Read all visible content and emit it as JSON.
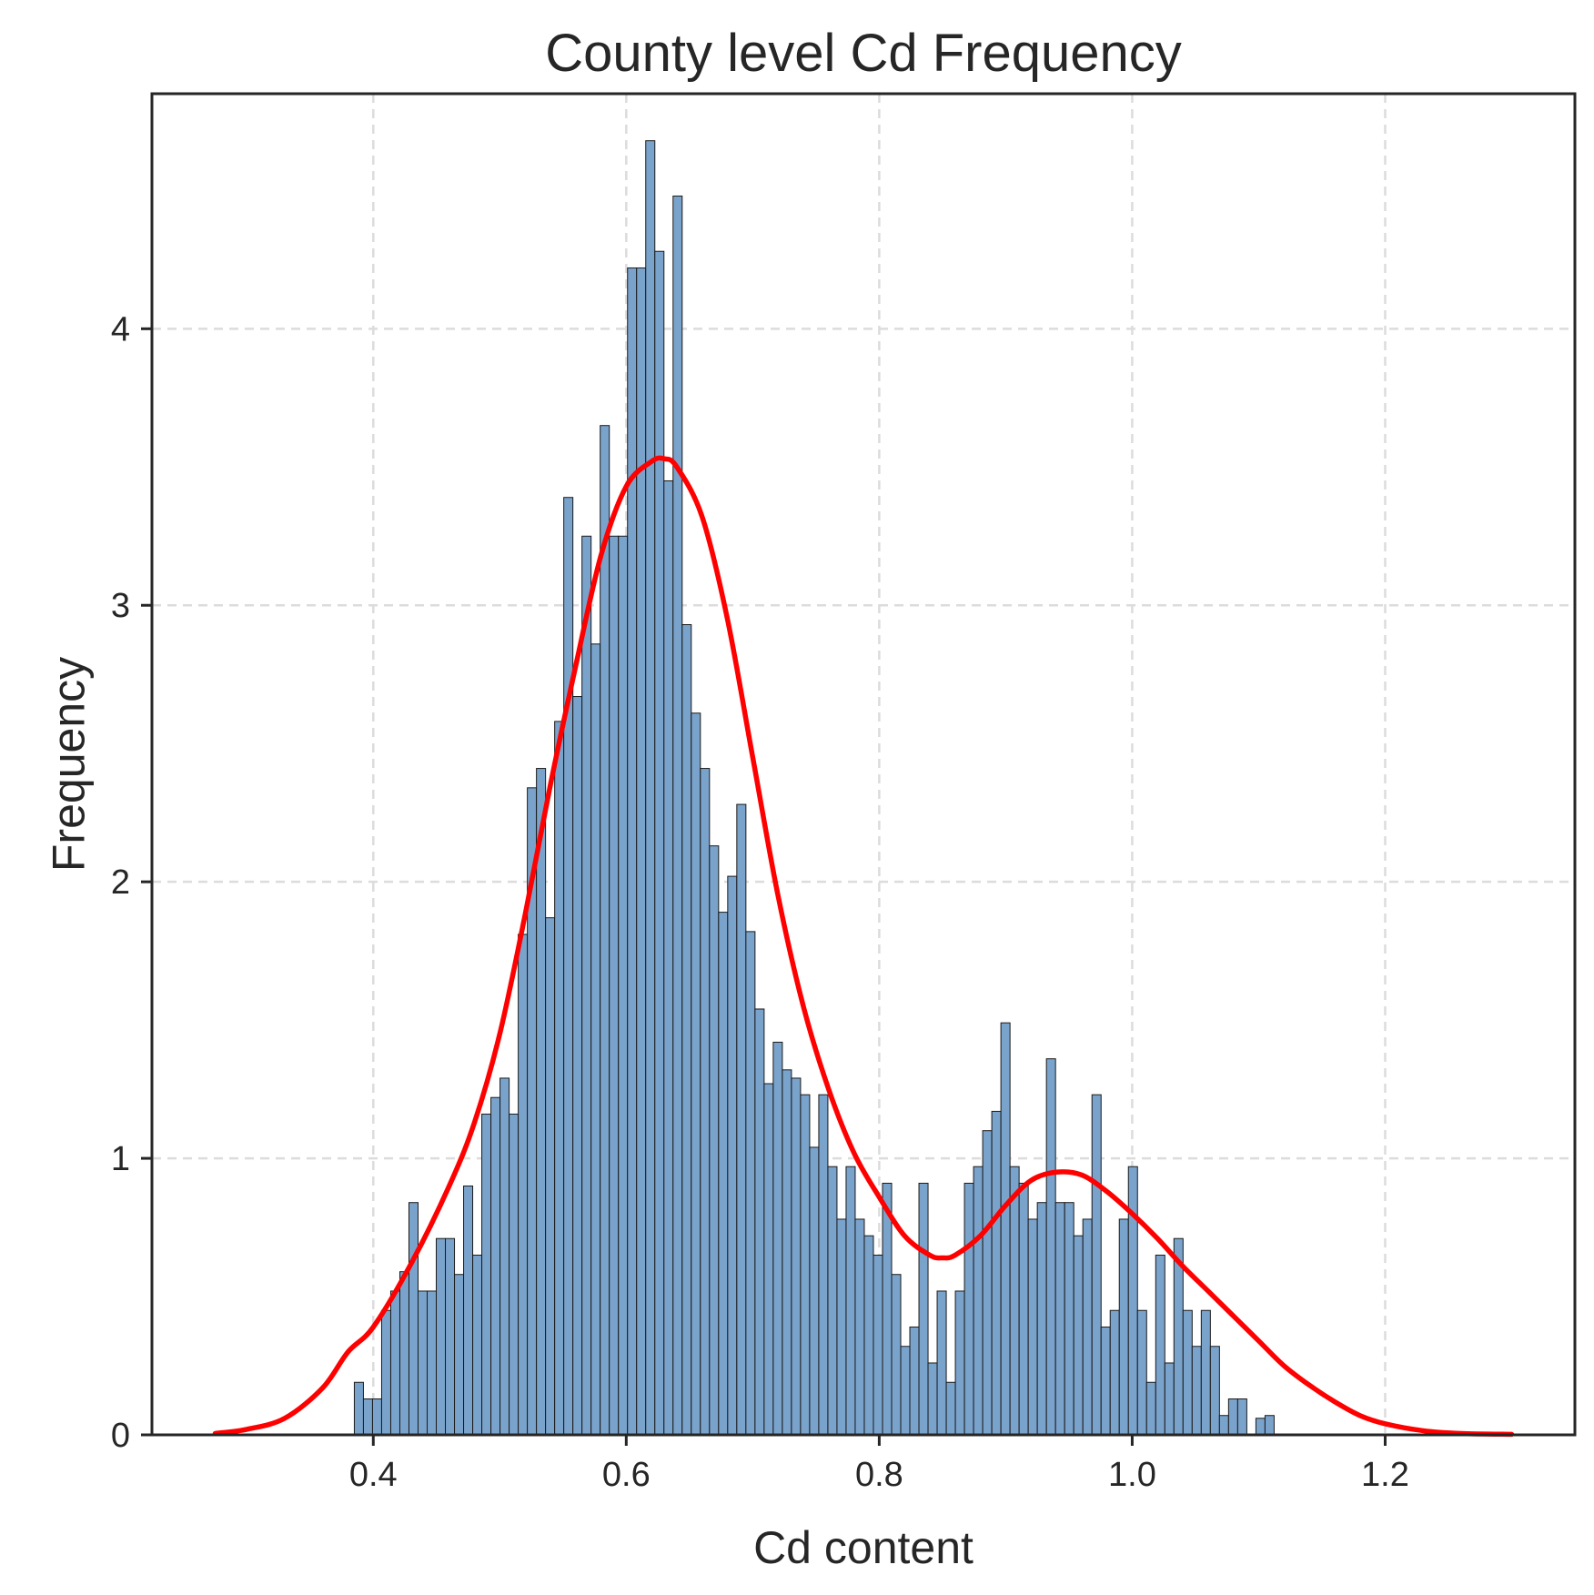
{
  "chart_data": {
    "type": "bar",
    "title": "County level Cd Frequency",
    "xlabel": "Cd content",
    "ylabel": "Frequency",
    "xlim": [
      0.225,
      1.35
    ],
    "ylim": [
      0,
      4.85
    ],
    "grid": true,
    "x_ticks": [
      {
        "value": 0.4,
        "label": "0.4"
      },
      {
        "value": 0.6,
        "label": "0.6"
      },
      {
        "value": 0.8,
        "label": "0.8"
      },
      {
        "value": 1.0,
        "label": "1.0"
      },
      {
        "value": 1.2,
        "label": "1.2"
      }
    ],
    "y_ticks": [
      {
        "value": 0,
        "label": "0"
      },
      {
        "value": 1,
        "label": "1"
      },
      {
        "value": 2,
        "label": "2"
      },
      {
        "value": 3,
        "label": "3"
      },
      {
        "value": 4,
        "label": "4"
      }
    ],
    "histogram": {
      "start": 0.385,
      "bin_width": 0.0072,
      "values": [
        0.19,
        0.13,
        0.13,
        0.45,
        0.52,
        0.59,
        0.84,
        0.52,
        0.52,
        0.71,
        0.71,
        0.58,
        0.9,
        0.65,
        1.16,
        1.22,
        1.29,
        1.16,
        1.81,
        2.34,
        2.41,
        1.87,
        2.58,
        3.39,
        2.67,
        3.25,
        2.86,
        3.65,
        3.25,
        3.25,
        4.22,
        4.22,
        4.68,
        4.28,
        3.45,
        4.48,
        2.93,
        2.61,
        2.41,
        2.13,
        1.89,
        2.02,
        2.28,
        1.82,
        1.54,
        1.27,
        1.42,
        1.32,
        1.29,
        1.23,
        1.04,
        1.23,
        0.97,
        0.78,
        0.97,
        0.78,
        0.72,
        0.65,
        0.91,
        0.58,
        0.32,
        0.39,
        0.91,
        0.26,
        0.52,
        0.19,
        0.52,
        0.91,
        0.97,
        1.1,
        1.17,
        1.49,
        0.97,
        0.91,
        0.78,
        0.84,
        1.36,
        0.84,
        0.84,
        0.72,
        0.78,
        1.23,
        0.39,
        0.45,
        0.78,
        0.97,
        0.45,
        0.19,
        0.65,
        0.26,
        0.71,
        0.45,
        0.32,
        0.45,
        0.32,
        0.07,
        0.13,
        0.13,
        0.0,
        0.06,
        0.07
      ],
      "fill": "#7aa3cc",
      "edge": "#1a1a1a"
    },
    "series": [
      {
        "type": "line",
        "color": "#ff0000",
        "x": [
          0.275,
          0.3,
          0.33,
          0.36,
          0.38,
          0.4,
          0.43,
          0.46,
          0.48,
          0.5,
          0.52,
          0.54,
          0.56,
          0.58,
          0.6,
          0.62,
          0.63,
          0.64,
          0.66,
          0.68,
          0.7,
          0.72,
          0.74,
          0.76,
          0.78,
          0.8,
          0.82,
          0.84,
          0.85,
          0.86,
          0.88,
          0.9,
          0.92,
          0.94,
          0.96,
          0.98,
          1.0,
          1.02,
          1.04,
          1.06,
          1.08,
          1.1,
          1.12,
          1.14,
          1.16,
          1.18,
          1.2,
          1.23,
          1.26,
          1.3
        ],
        "y": [
          0.005,
          0.02,
          0.06,
          0.17,
          0.3,
          0.39,
          0.62,
          0.9,
          1.13,
          1.45,
          1.88,
          2.35,
          2.78,
          3.18,
          3.43,
          3.52,
          3.53,
          3.5,
          3.32,
          2.95,
          2.45,
          1.95,
          1.55,
          1.25,
          1.02,
          0.86,
          0.72,
          0.65,
          0.64,
          0.65,
          0.72,
          0.83,
          0.92,
          0.95,
          0.94,
          0.88,
          0.8,
          0.71,
          0.61,
          0.52,
          0.43,
          0.34,
          0.25,
          0.18,
          0.12,
          0.07,
          0.04,
          0.015,
          0.005,
          0.002
        ]
      }
    ]
  }
}
